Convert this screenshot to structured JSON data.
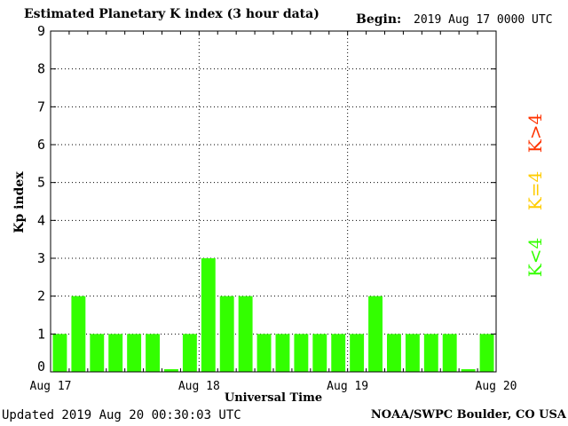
{
  "header": {
    "title": "Estimated Planetary K index (3 hour data)",
    "begin_label": "Begin:",
    "begin_value": "2019 Aug 17 0000 UTC"
  },
  "footer": {
    "updated": "Updated 2019 Aug 20 00:30:03 UTC",
    "credit": "NOAA/SWPC Boulder, CO USA"
  },
  "key_legend": [
    {
      "label": "K>4",
      "color": "#ff3300"
    },
    {
      "label": "K=4",
      "color": "#ffcc00"
    },
    {
      "label": "K<4",
      "color": "#33ff00"
    }
  ],
  "chart_data": {
    "type": "bar",
    "title": "Estimated Planetary K index (3 hour data)",
    "xlabel": "Universal Time",
    "ylabel": "Kp index",
    "ylim": [
      0,
      9
    ],
    "yticks": [
      "0",
      "1",
      "2",
      "3",
      "4",
      "5",
      "6",
      "7",
      "8",
      "9"
    ],
    "x_tick_labels": [
      "Aug 17",
      "Aug 18",
      "Aug 19",
      "Aug 20"
    ],
    "interval_hours": 3,
    "values": [
      1,
      2,
      1,
      1,
      1,
      1,
      0,
      1,
      3,
      2,
      2,
      1,
      1,
      1,
      1,
      1,
      1,
      2,
      1,
      1,
      1,
      1,
      0,
      1
    ],
    "bar_color": "#33ff00",
    "grid": "dotted"
  }
}
